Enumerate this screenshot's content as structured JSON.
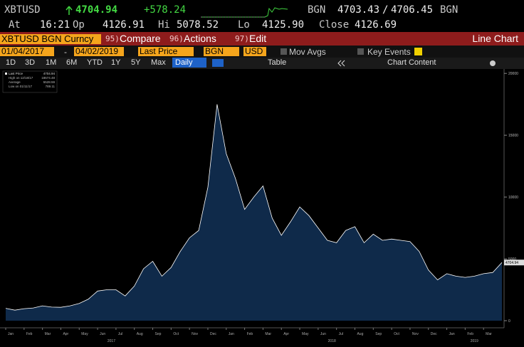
{
  "quote": {
    "ticker": "XBTUSD",
    "last": "4704.94",
    "change": "+578.24",
    "source": "BGN",
    "bid": "4703.43",
    "sep": "/",
    "ask": "4706.45",
    "source2": "BGN"
  },
  "stats": [
    {
      "label": "At",
      "value": "16:21"
    },
    {
      "label": "Op",
      "value": "4126.91"
    },
    {
      "label": "Hi",
      "value": "5078.52"
    },
    {
      "label": "Lo",
      "value": "4125.90"
    },
    {
      "label": "Close",
      "value": "4126.69"
    }
  ],
  "menu": {
    "security": "XBTUSD BGN Curncy",
    "items": [
      {
        "code": "95)",
        "label": "Compare"
      },
      {
        "code": "96)",
        "label": "Actions"
      },
      {
        "code": "97)",
        "label": "Edit"
      }
    ],
    "view": "Line Chart"
  },
  "controls": {
    "start": "01/04/2017",
    "dash": "-",
    "end": "04/02/2019",
    "field": "Last Price",
    "source": "BGN",
    "currency": "USD",
    "mov_avgs": "Mov Avgs",
    "key_events": "Key Events"
  },
  "toolbar": {
    "periods": [
      "1D",
      "3D",
      "1M",
      "6M",
      "YTD",
      "1Y",
      "5Y",
      "Max"
    ],
    "frequency": "Daily",
    "table": "Table",
    "chart_content": "Chart Content"
  },
  "chart_data": {
    "type": "line",
    "area": true,
    "area_color": "#0f2a4a",
    "categories": [
      "Jan",
      null,
      "Feb",
      null,
      "Mar",
      null,
      "Apr",
      null,
      "May",
      null,
      "Jun",
      null,
      "Jul",
      null,
      "Aug",
      null,
      "Sep",
      null,
      "Oct",
      null,
      "Nov",
      null,
      "Dec",
      null,
      "Jan",
      null,
      "Feb",
      null,
      "Mar",
      null,
      "Apr",
      null,
      "May",
      null,
      "Jun",
      null,
      "Jul",
      null,
      "Aug",
      null,
      "Sep",
      null,
      "Oct",
      null,
      "Nov",
      null,
      "Dec",
      null,
      "Jan",
      null,
      "Feb",
      null,
      "Mar",
      null,
      null
    ],
    "years": [
      "2017",
      "2018",
      "2019"
    ],
    "series": [
      {
        "name": "Last Price",
        "color": "#ffffff",
        "values": [
          1000,
          850,
          970,
          1030,
          1200,
          1100,
          1080,
          1200,
          1400,
          1750,
          2400,
          2500,
          2500,
          2000,
          2800,
          4200,
          4800,
          3600,
          4300,
          5600,
          6700,
          7300,
          10800,
          17500,
          13500,
          11500,
          9000,
          10000,
          10900,
          8300,
          6900,
          8000,
          9200,
          8500,
          7500,
          6500,
          6300,
          7300,
          7600,
          6300,
          7000,
          6500,
          6600,
          6500,
          6400,
          5600,
          4100,
          3300,
          3800,
          3600,
          3500,
          3600,
          3800,
          3900,
          4704.94
        ]
      }
    ],
    "legend_stats": [
      {
        "label": "High on 12/18/17",
        "value": 18674.48
      },
      {
        "label": "Average",
        "value": 5528.59
      },
      {
        "label": "Low on 01/11/17",
        "value": 789.11
      }
    ],
    "ylim": [
      0,
      20300
    ],
    "yticks": [
      0,
      5000,
      10000,
      15000,
      20000
    ]
  }
}
